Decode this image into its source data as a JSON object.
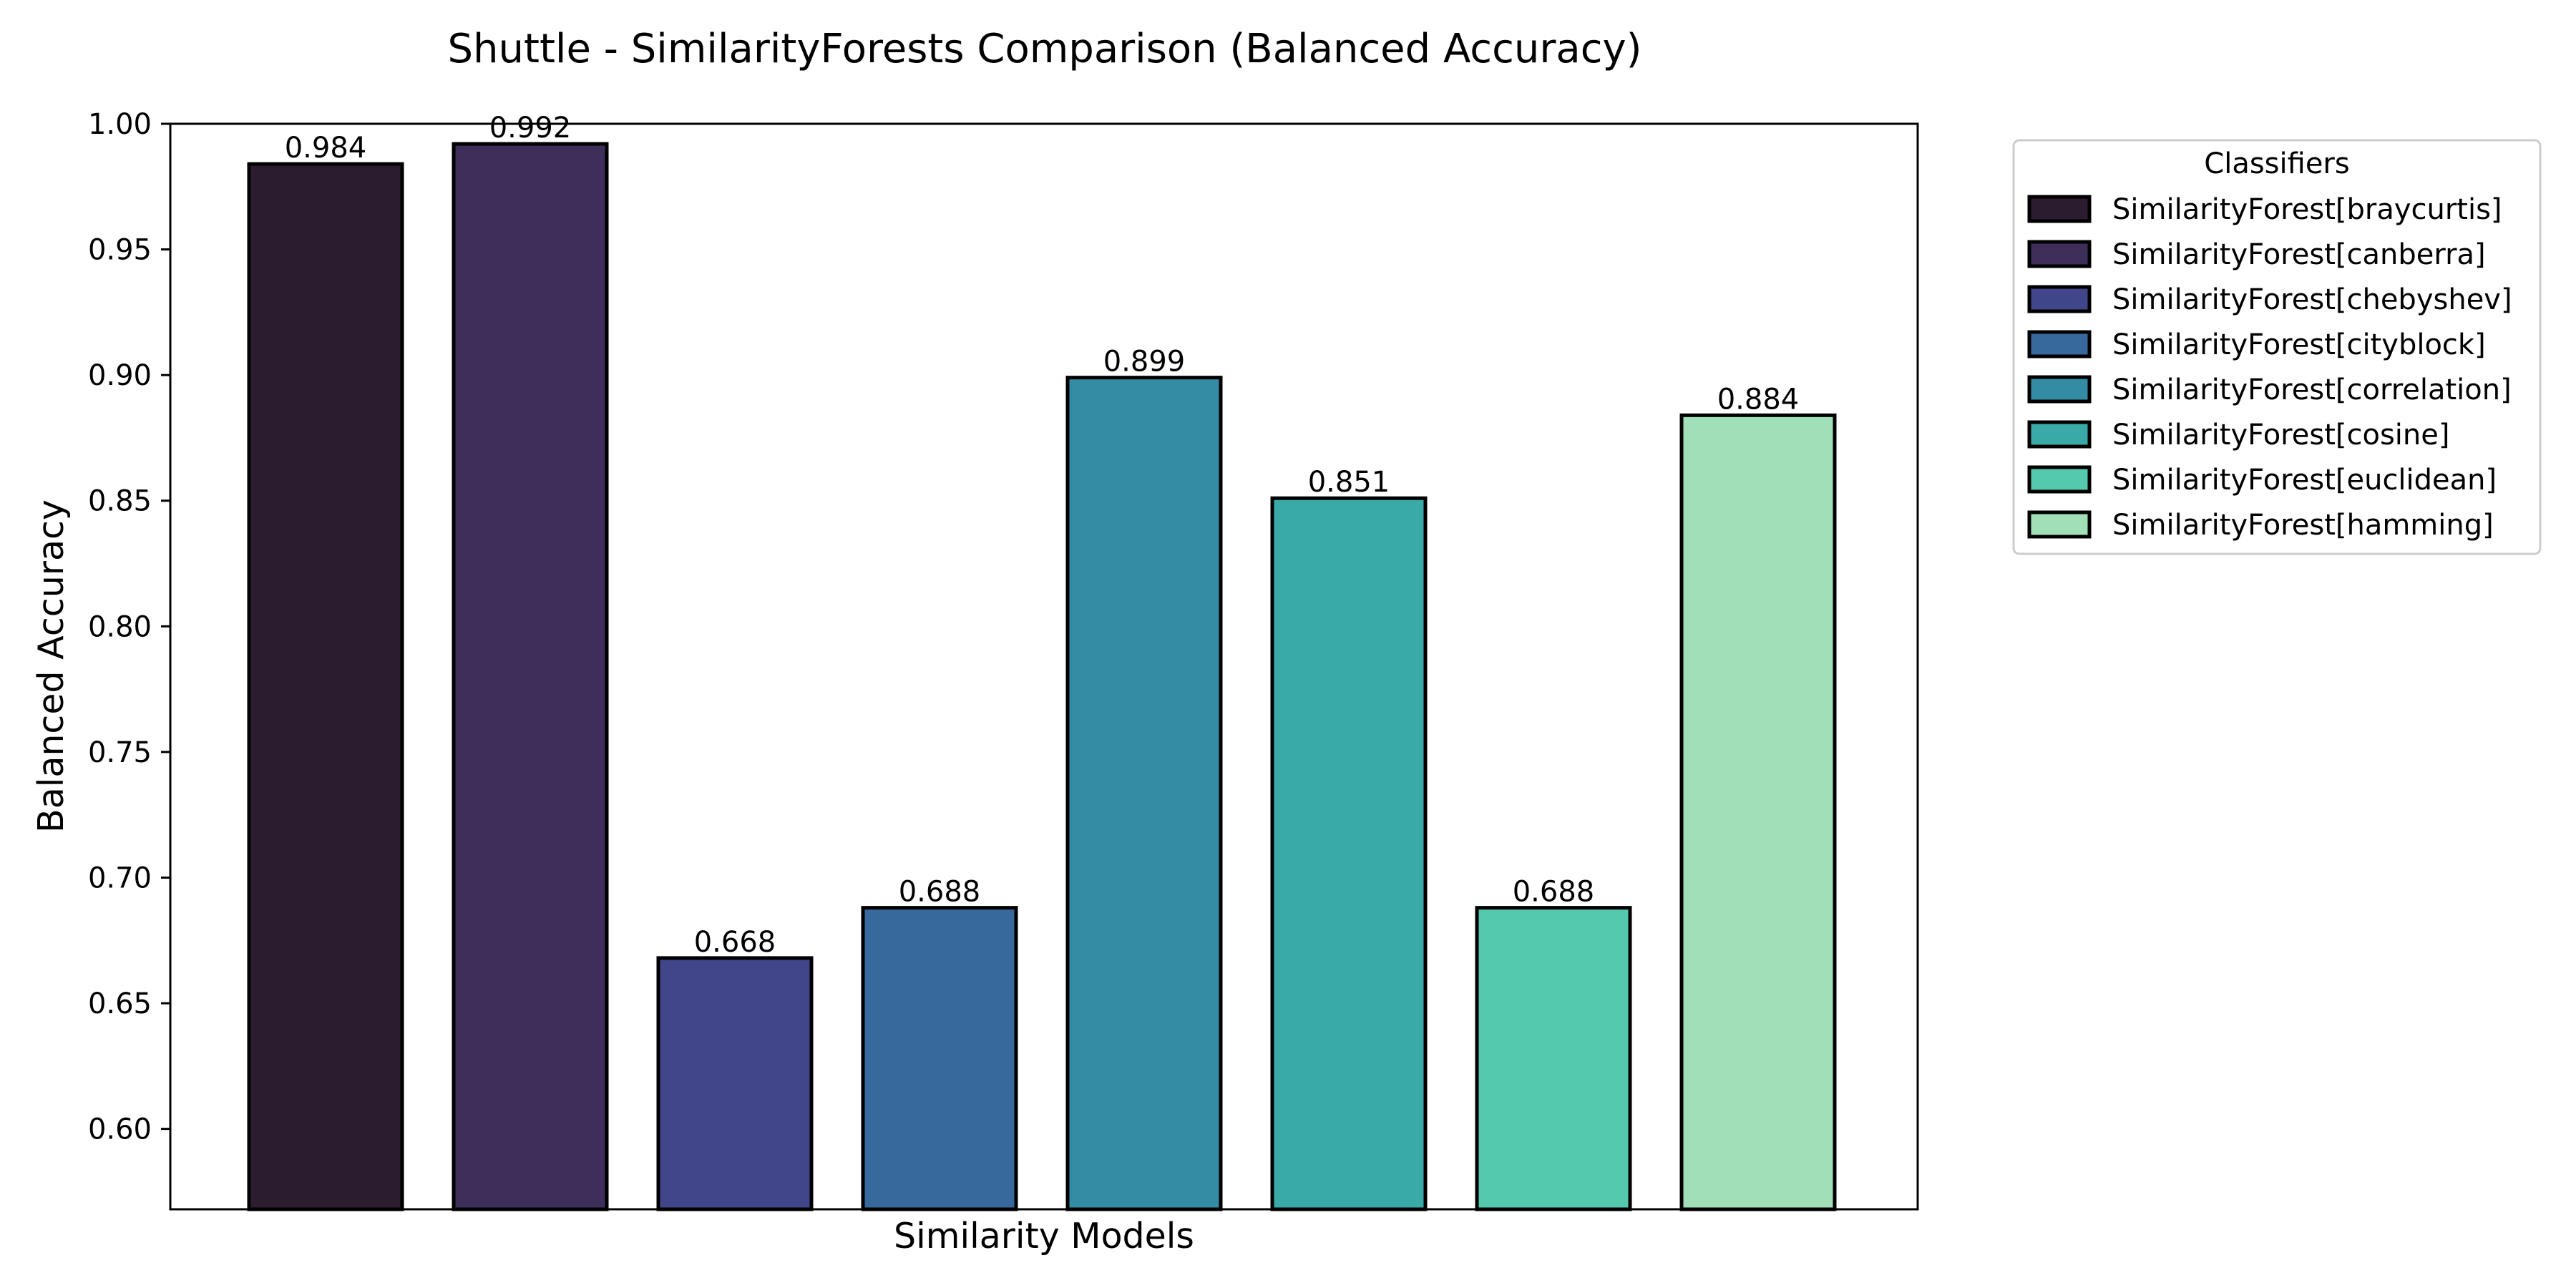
{
  "chart_data": {
    "type": "bar",
    "title": "Shuttle - SimilarityForests Comparison (Balanced Accuracy)",
    "xlabel": "Similarity Models",
    "ylabel": "Balanced Accuracy",
    "ylim": [
      0.568,
      1.0
    ],
    "yticks": [
      0.6,
      0.65,
      0.7,
      0.75,
      0.8,
      0.85,
      0.9,
      0.95,
      1.0
    ],
    "ytick_labels": [
      "0.60",
      "0.65",
      "0.70",
      "0.75",
      "0.80",
      "0.85",
      "0.90",
      "0.95",
      "1.00"
    ],
    "grid": false,
    "legend": {
      "title": "Classifiers",
      "placement": "outside-upper-right"
    },
    "categories": [
      "SimilarityForest[braycurtis]",
      "SimilarityForest[canberra]",
      "SimilarityForest[chebyshev]",
      "SimilarityForest[cityblock]",
      "SimilarityForest[correlation]",
      "SimilarityForest[cosine]",
      "SimilarityForest[euclidean]",
      "SimilarityForest[hamming]"
    ],
    "values": [
      0.984,
      0.992,
      0.668,
      0.688,
      0.899,
      0.851,
      0.688,
      0.884
    ],
    "value_labels": [
      "0.984",
      "0.992",
      "0.668",
      "0.688",
      "0.899",
      "0.851",
      "0.688",
      "0.884"
    ],
    "colors": [
      "#2b1c2f",
      "#3e2e5a",
      "#414589",
      "#38699d",
      "#348ba4",
      "#39aaa8",
      "#55c9ae",
      "#a1dfb8"
    ]
  }
}
